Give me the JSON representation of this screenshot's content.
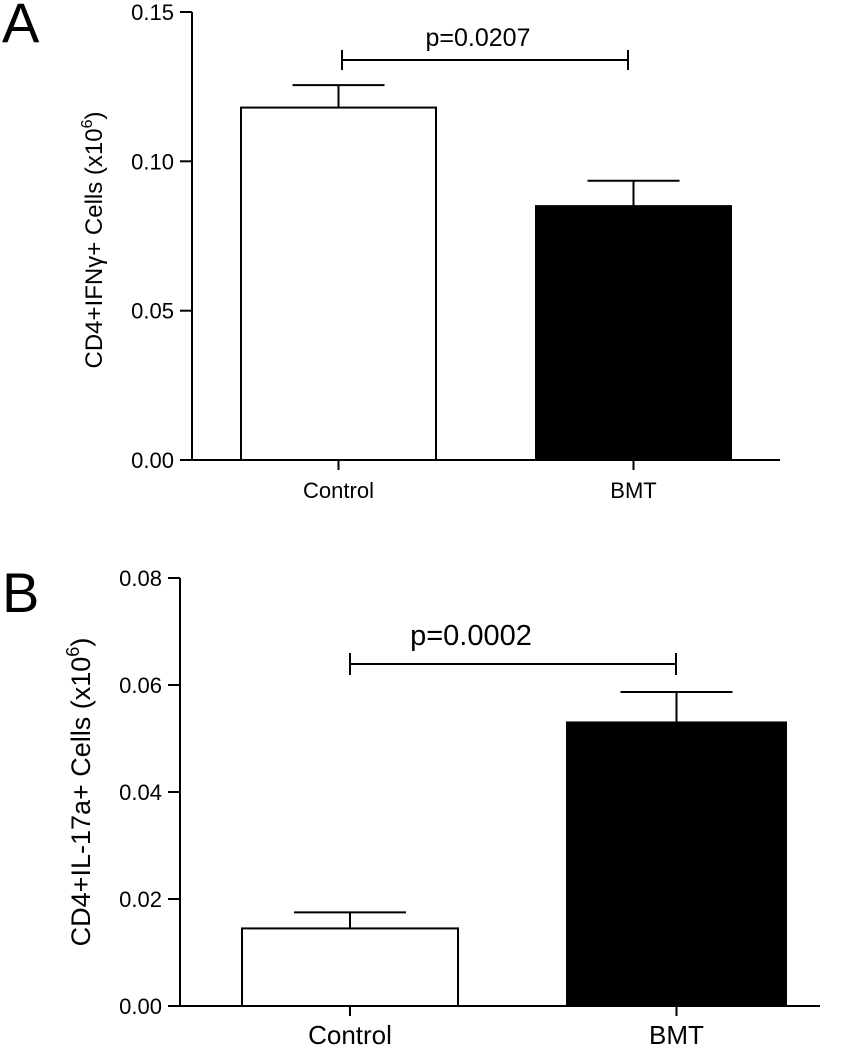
{
  "chart_data": [
    {
      "type": "bar",
      "panel_label": "A",
      "ylabel": "CD4+IFNγ+ Cells (x10",
      "ylabel_sup": "6",
      "ylabel_close": ")",
      "ylim": [
        0,
        0.15
      ],
      "yticks": [
        "0.00",
        "0.05",
        "0.10",
        "0.15"
      ],
      "categories": [
        "Control",
        "BMT"
      ],
      "values": [
        0.118,
        0.085
      ],
      "errors": [
        0.0075,
        0.0085
      ],
      "bar_colors": [
        "#ffffff",
        "#000000"
      ],
      "annotation": "p=0.0207",
      "grid": false
    },
    {
      "type": "bar",
      "panel_label": "B",
      "ylabel": "CD4+IL-17a+ Cells (x10",
      "ylabel_sup": "6",
      "ylabel_close": ")",
      "ylim": [
        0,
        0.08
      ],
      "yticks": [
        "0.00",
        "0.02",
        "0.04",
        "0.06",
        "0.08"
      ],
      "categories": [
        "Control",
        "BMT"
      ],
      "values": [
        0.0145,
        0.053
      ],
      "errors": [
        0.003,
        0.0057
      ],
      "bar_colors": [
        "#ffffff",
        "#000000"
      ],
      "annotation": "p=0.0002",
      "grid": false
    }
  ]
}
